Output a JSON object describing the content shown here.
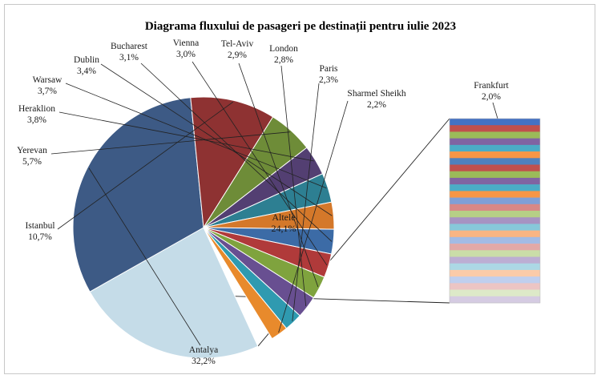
{
  "chart_data": {
    "type": "pie",
    "title": "Diagrama fluxului de pasageri pe destinații pentru iulie 2023",
    "slices": [
      {
        "label": "Altele",
        "value": 24.1,
        "value_text": "24,1%",
        "color": "#c5dce8"
      },
      {
        "label": "Antalya",
        "value": 32.2,
        "value_text": "32,2%",
        "color": "#3d5a85"
      },
      {
        "label": "Istanbul",
        "value": 10.7,
        "value_text": "10,7%",
        "color": "#8e3232"
      },
      {
        "label": "Yerevan",
        "value": 5.7,
        "value_text": "5,7%",
        "color": "#6e8c38"
      },
      {
        "label": "Heraklion",
        "value": 3.8,
        "value_text": "3,8%",
        "color": "#533f72"
      },
      {
        "label": "Warsaw",
        "value": 3.7,
        "value_text": "3,7%",
        "color": "#2d7f92"
      },
      {
        "label": "Dublin",
        "value": 3.4,
        "value_text": "3,4%",
        "color": "#d4782a"
      },
      {
        "label": "Bucharest",
        "value": 3.1,
        "value_text": "3,1%",
        "color": "#3c6ba6"
      },
      {
        "label": "Vienna",
        "value": 3.0,
        "value_text": "3,0%",
        "color": "#b03a3a"
      },
      {
        "label": "Tel-Aviv",
        "value": 2.9,
        "value_text": "2,9%",
        "color": "#7fa33e"
      },
      {
        "label": "London",
        "value": 2.8,
        "value_text": "2,8%",
        "color": "#684f91"
      },
      {
        "label": "Paris",
        "value": 2.3,
        "value_text": "2,3%",
        "color": "#2f9ab0"
      },
      {
        "label": "Sharmel Sheikh",
        "value": 2.2,
        "value_text": "2,2%",
        "color": "#e88a2c"
      }
    ],
    "breakdown": {
      "label": "Frankfurt",
      "value": 2.0,
      "value_text": "2,0%",
      "colors": [
        "#4472c4",
        "#c0504d",
        "#9bbb59",
        "#8064a2",
        "#4bacc6",
        "#f79646",
        "#4f81bd",
        "#c0504d",
        "#9bbb59",
        "#8064a2",
        "#4bacc6",
        "#f79646",
        "#7f9fd6",
        "#d88886",
        "#b6cf86",
        "#a693c2",
        "#87c8da",
        "#f9b583",
        "#a3bbe4",
        "#e2a9a7",
        "#cadda8",
        "#bcaed3",
        "#acd8e5",
        "#fbcba9",
        "#c0cfee",
        "#ecc5c4",
        "#dde9c8",
        "#d5cbe2"
      ]
    }
  }
}
